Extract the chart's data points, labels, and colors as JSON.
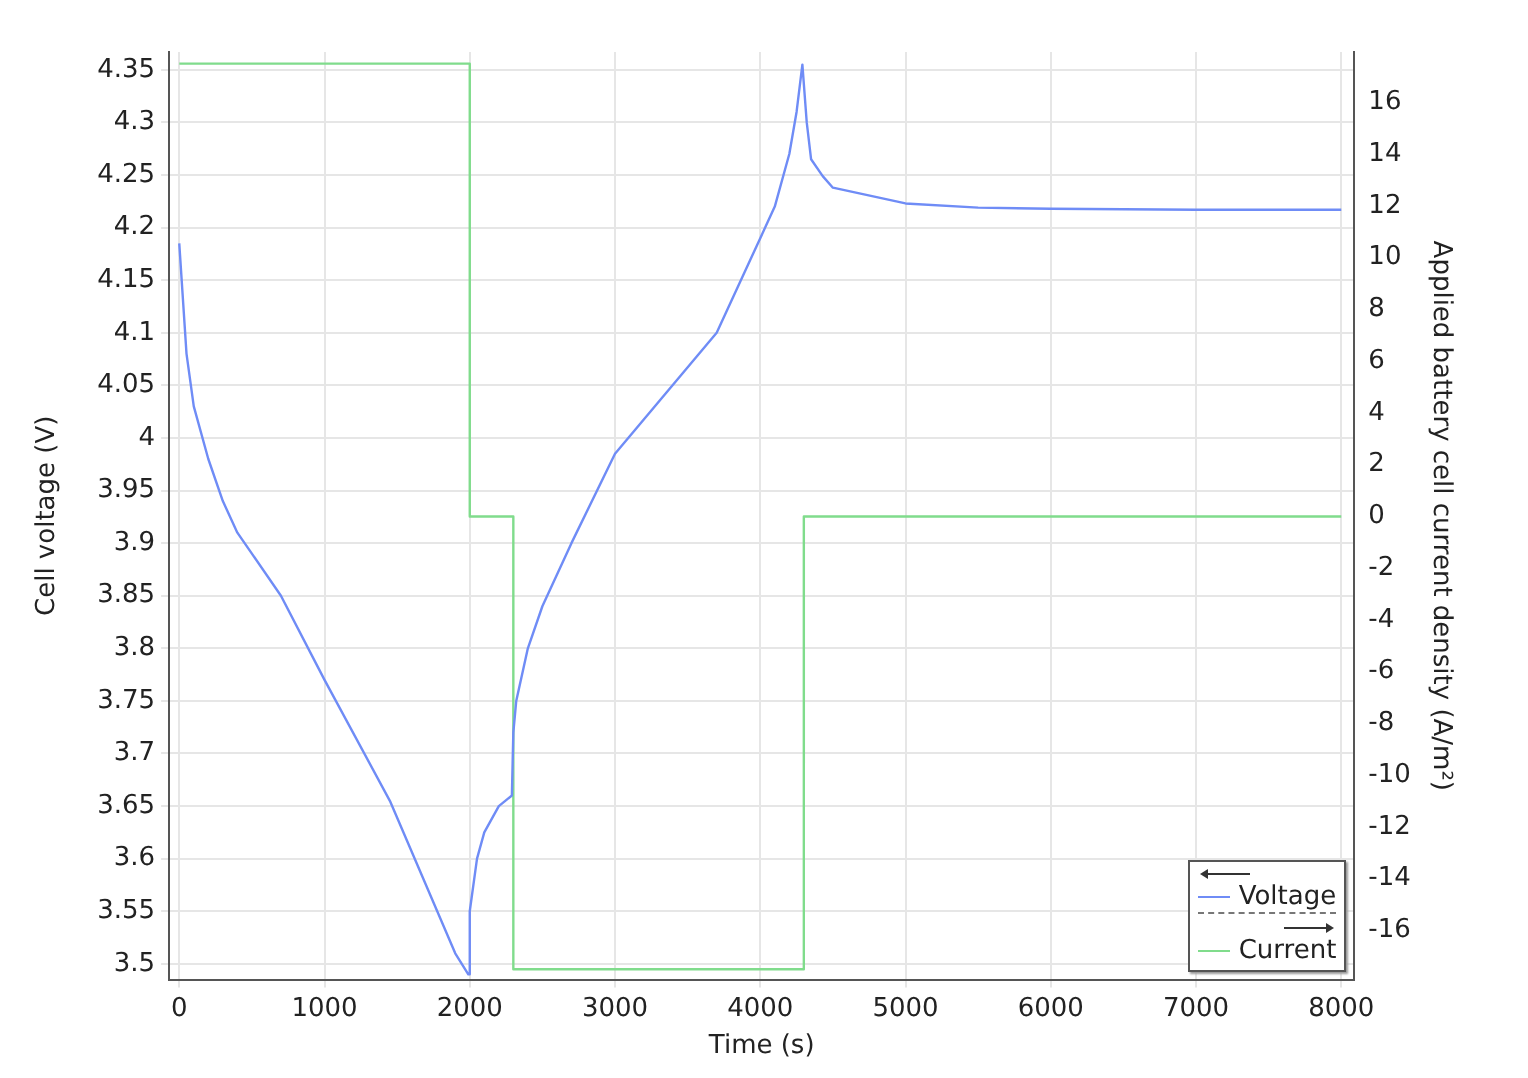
{
  "chart_data": {
    "type": "line",
    "xlabel": "Time (s)",
    "ylabel": "Cell voltage (V)",
    "y2label": "Applied battery cell current density (A/m²)",
    "xlim": [
      -70,
      8090
    ],
    "xticks": [
      0,
      1000,
      2000,
      3000,
      4000,
      5000,
      6000,
      7000,
      8000
    ],
    "ylim": [
      3.485,
      4.367
    ],
    "yticks": [
      3.5,
      3.55,
      3.6,
      3.65,
      3.7,
      3.75,
      3.8,
      3.85,
      3.9,
      3.95,
      4,
      4.05,
      4.1,
      4.15,
      4.2,
      4.25,
      4.3,
      4.35
    ],
    "y2lim": [
      -17.9,
      17.95
    ],
    "y2ticks": [
      -16,
      -14,
      -12,
      -10,
      -8,
      -6,
      -4,
      -2,
      0,
      2,
      4,
      6,
      8,
      10,
      12,
      14,
      16
    ],
    "grid": true,
    "legend": "bottom right",
    "marker": "none",
    "line_style": "solid",
    "series": [
      {
        "name": "Voltage",
        "color": "#6f8cf6",
        "x": [
          0,
          50,
          100,
          200,
          300,
          400,
          500,
          700,
          1000,
          1450,
          1900,
          1990,
          2000,
          2050,
          2100,
          2200,
          2290,
          2300,
          2320,
          2400,
          2500,
          2700,
          3000,
          3700,
          4000,
          4100,
          4200,
          4250,
          4290,
          4320,
          4350,
          4430,
          4500,
          5000,
          5500,
          6000,
          7000,
          8000
        ],
        "values": [
          4.185,
          4.08,
          4.03,
          3.98,
          3.94,
          3.91,
          3.89,
          3.85,
          3.77,
          3.655,
          3.51,
          3.49,
          3.55,
          3.6,
          3.625,
          3.65,
          3.66,
          3.72,
          3.75,
          3.8,
          3.84,
          3.9,
          3.985,
          4.1,
          4.19,
          4.22,
          4.27,
          4.31,
          4.355,
          4.3,
          4.265,
          4.249,
          4.238,
          4.223,
          4.219,
          4.218,
          4.217,
          4.217
        ]
      },
      {
        "name": "Current",
        "color": "#80dc8c",
        "axis": "y2",
        "x": [
          0,
          2000,
          2000,
          2300,
          2300,
          4300,
          4300,
          8000
        ],
        "values": [
          17.5,
          17.5,
          0,
          0,
          -17.5,
          -17.5,
          0,
          0
        ]
      }
    ]
  }
}
